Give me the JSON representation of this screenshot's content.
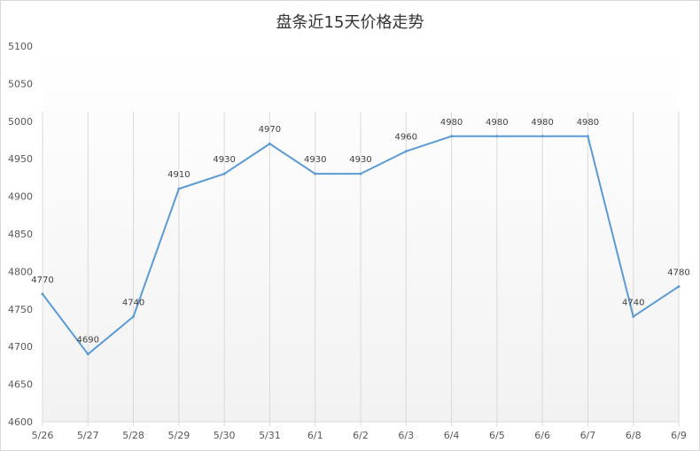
{
  "colors": {
    "line": "#5b9bd5",
    "grid": "#d9d9d9",
    "plot_gradient_top": "#ffffff",
    "plot_gradient_bottom": "#f2f2f2"
  },
  "chart_data": {
    "type": "line",
    "title": "盘条近15天价格走势",
    "xlabel": "",
    "ylabel": "",
    "categories": [
      "5/26",
      "5/27",
      "5/28",
      "5/29",
      "5/30",
      "5/31",
      "6/1",
      "6/2",
      "6/3",
      "6/4",
      "6/5",
      "6/6",
      "6/7",
      "6/8",
      "6/9"
    ],
    "series": [
      {
        "values": [
          4770,
          4690,
          4740,
          4910,
          4930,
          4970,
          4930,
          4930,
          4960,
          4980,
          4980,
          4980,
          4980,
          4740,
          4780
        ]
      }
    ],
    "ylim": [
      4600,
      5100
    ],
    "yticks": [
      4600,
      4650,
      4700,
      4750,
      4800,
      4850,
      4900,
      4950,
      5000,
      5050,
      5100
    ],
    "grid": "vertical",
    "legend": "none",
    "data_labels": true
  }
}
